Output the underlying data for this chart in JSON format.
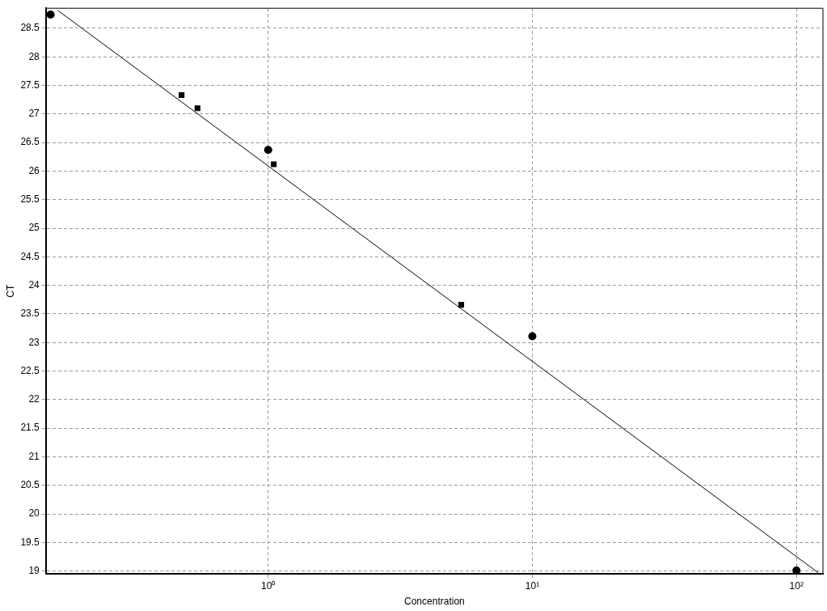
{
  "chart_data": {
    "type": "scatter",
    "xlabel": "Concentration",
    "ylabel": "CT",
    "log": "x",
    "grid": true,
    "xlim": [
      0.144,
      126
    ],
    "xticks": [
      {
        "value": 1,
        "label": "10⁰"
      },
      {
        "value": 10,
        "label": "10¹"
      },
      {
        "value": 100,
        "label": "10²"
      }
    ],
    "ylim": [
      18.95,
      28.85
    ],
    "yticks": [
      19,
      19.5,
      20,
      20.5,
      21,
      21.5,
      22,
      22.5,
      23,
      23.5,
      24,
      24.5,
      25,
      25.5,
      26,
      26.5,
      27,
      27.5,
      28,
      28.5
    ],
    "series": [
      {
        "type": "scatter",
        "marker": "circle",
        "color": "#000000",
        "x": [
          0.15,
          1,
          10,
          100
        ],
        "values": [
          28.74,
          26.37,
          23.11,
          19.01
        ]
      },
      {
        "type": "scatter",
        "marker": "square",
        "color": "#000000",
        "x": [
          0.47,
          0.54,
          1.05,
          5.38
        ],
        "values": [
          27.33,
          27.1,
          26.12,
          23.66
        ]
      },
      {
        "type": "line",
        "marker": "none",
        "color": "#000000",
        "x": [
          0.16,
          121
        ],
        "values": [
          28.81,
          18.97
        ]
      }
    ]
  }
}
